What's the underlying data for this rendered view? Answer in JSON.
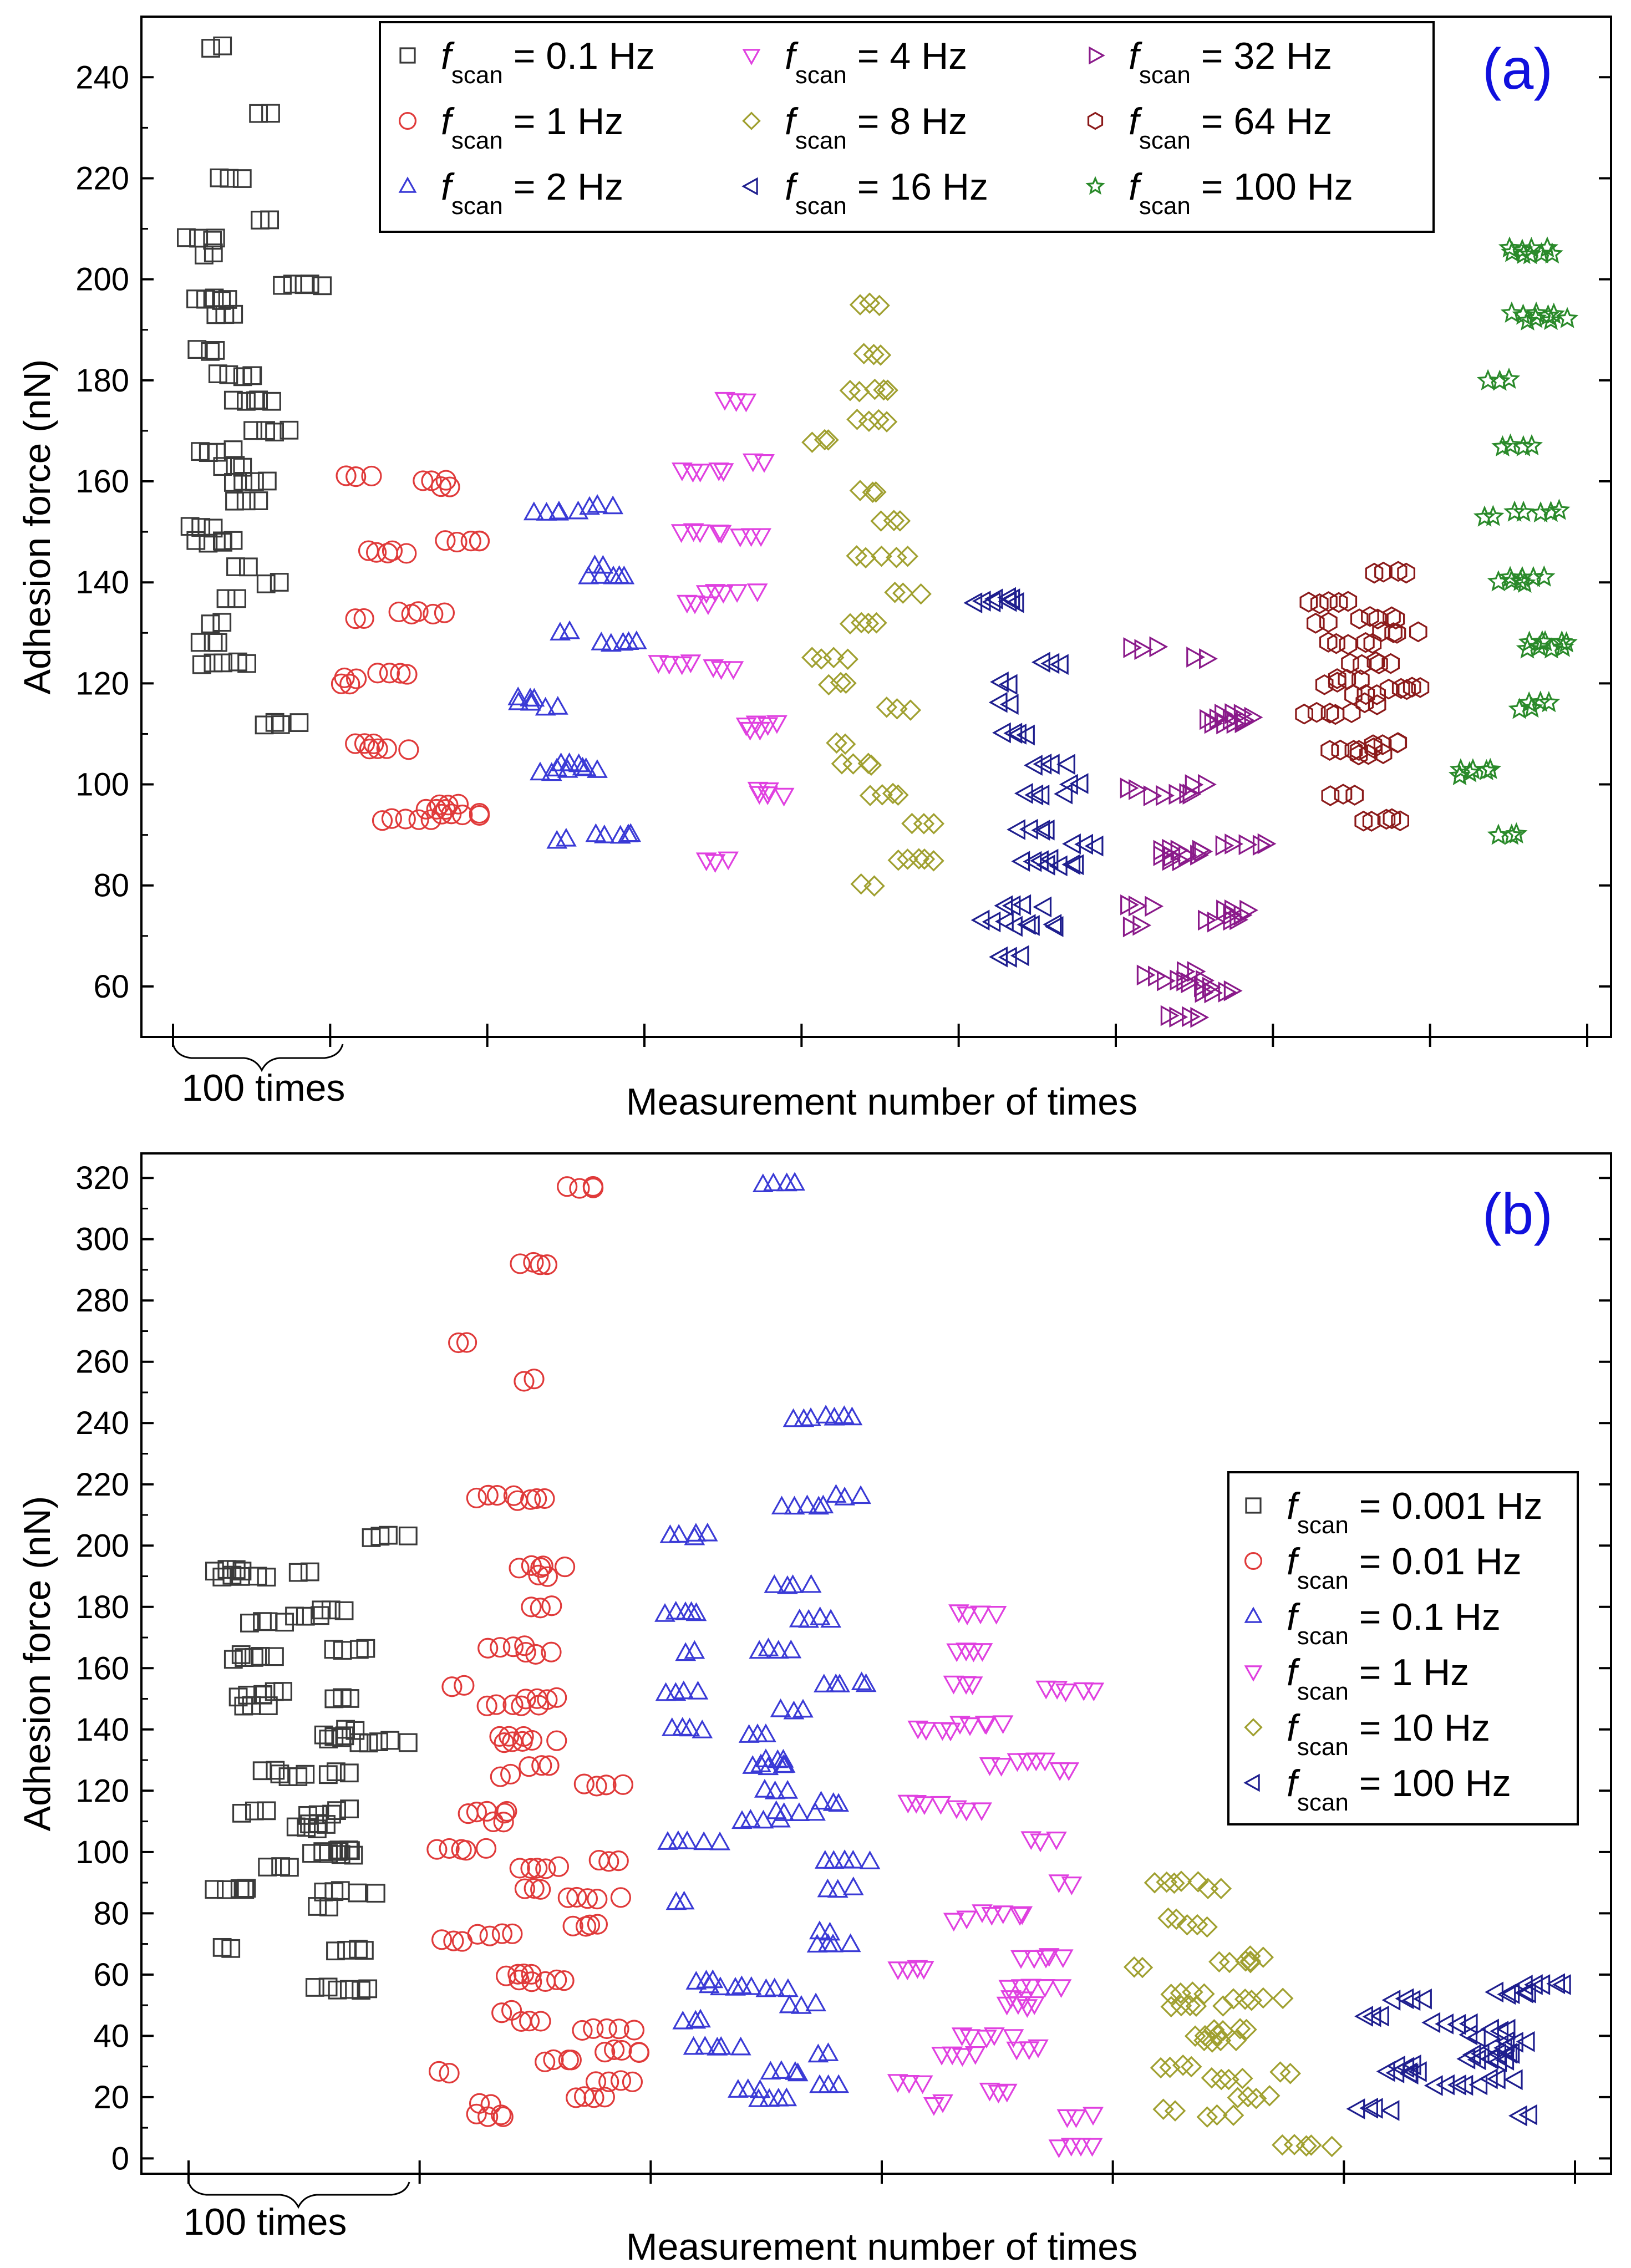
{
  "chart_data": [
    {
      "type": "scatter",
      "panel_label": "(a)",
      "title": "",
      "xlabel": "Measurement number of times",
      "ylabel": "Adhesion force (nN)",
      "ylim": [
        50,
        252
      ],
      "yticks": [
        60,
        80,
        100,
        120,
        140,
        160,
        180,
        200,
        220,
        240
      ],
      "ytick_labels": [
        "60",
        "80",
        "100",
        "120",
        "140",
        "160",
        "180",
        "200",
        "220",
        "240"
      ],
      "x_unit": 100,
      "x_unit_annotation": "100 times",
      "legend_position": "top",
      "legend_param": "f",
      "legend_param_sub": "scan",
      "series": [
        {
          "name": "0.1 Hz",
          "label_suffix": " = 0.1 Hz",
          "marker": "square",
          "color": "#3a3a3a",
          "levels": [
            246,
            233,
            220,
            212,
            208,
            205,
            199,
            196,
            193,
            186,
            181,
            176,
            170,
            166,
            163,
            160,
            156,
            151,
            148,
            143,
            140,
            137,
            132,
            128,
            124,
            112
          ]
        },
        {
          "name": "1 Hz",
          "label_suffix": " = 1 Hz",
          "marker": "circle",
          "color": "#e03a3a",
          "levels": [
            161,
            160,
            159,
            148,
            146,
            134,
            133,
            122,
            121,
            120,
            108,
            107,
            96,
            95,
            94,
            93
          ]
        },
        {
          "name": "2 Hz",
          "label_suffix": " = 2 Hz",
          "marker": "triangle-up",
          "color": "#3a3ad6",
          "levels": [
            155,
            154,
            143,
            141,
            130,
            128,
            117,
            116,
            115,
            104,
            103,
            102,
            90,
            89
          ]
        },
        {
          "name": "4 Hz",
          "label_suffix": " = 4 Hz",
          "marker": "triangle-down",
          "color": "#e040e0",
          "levels": [
            176,
            164,
            162,
            150,
            149,
            138,
            136,
            124,
            123,
            112,
            111,
            99,
            98,
            85
          ]
        },
        {
          "name": "8 Hz",
          "label_suffix": " = 8 Hz",
          "marker": "diamond",
          "color": "#a0a030",
          "levels": [
            195,
            185,
            178,
            172,
            168,
            158,
            152,
            145,
            138,
            132,
            125,
            120,
            115,
            108,
            104,
            98,
            92,
            85,
            80
          ]
        },
        {
          "name": "16 Hz",
          "label_suffix": " = 16 Hz",
          "marker": "triangle-left",
          "color": "#1e1e8e",
          "levels": [
            137,
            136,
            124,
            120,
            116,
            110,
            104,
            100,
            98,
            91,
            88,
            85,
            84,
            76,
            73,
            72,
            66
          ]
        },
        {
          "name": "32 Hz",
          "label_suffix": " = 32 Hz",
          "marker": "triangle-right",
          "color": "#8a1a8a",
          "levels": [
            127,
            125,
            114,
            113,
            112,
            100,
            99,
            98,
            88,
            87,
            86,
            85,
            76,
            75,
            74,
            73,
            72,
            63,
            62,
            61,
            60,
            59,
            54
          ]
        },
        {
          "name": "64 Hz",
          "label_suffix": " = 64 Hz",
          "marker": "hexagon",
          "color": "#8b1a1a",
          "levels": [
            142,
            136,
            133,
            132,
            130,
            128,
            124,
            121,
            120,
            119,
            118,
            116,
            114,
            108,
            107,
            106,
            98,
            93
          ]
        },
        {
          "name": "100 Hz",
          "label_suffix": " = 100 Hz",
          "marker": "star",
          "color": "#2a8a2a",
          "levels": [
            206,
            205,
            193,
            192,
            180,
            167,
            154,
            153,
            141,
            140,
            128,
            127,
            116,
            115,
            103,
            102,
            90
          ]
        }
      ]
    },
    {
      "type": "scatter",
      "panel_label": "(b)",
      "title": "",
      "xlabel": "Measurement number of times",
      "ylabel": "Adhesion force (nN)",
      "ylim": [
        -5,
        328
      ],
      "yticks": [
        0,
        20,
        40,
        60,
        80,
        100,
        120,
        140,
        160,
        180,
        200,
        220,
        240,
        260,
        280,
        300,
        320
      ],
      "ytick_labels": [
        "0",
        "20",
        "40",
        "60",
        "80",
        "100",
        "120",
        "140",
        "160",
        "180",
        "200",
        "220",
        "240",
        "260",
        "280",
        "300",
        "320"
      ],
      "x_unit": 100,
      "x_unit_annotation": "100 times",
      "legend_position": "right",
      "legend_param": "f",
      "legend_param_sub": "scan",
      "series": [
        {
          "name": "0.001 Hz",
          "label_suffix": " = 0.001 Hz",
          "marker": "square",
          "color": "#3a3a3a",
          "levels": [
            203,
            192,
            191,
            190,
            179,
            177,
            175,
            166,
            164,
            163,
            152,
            151,
            150,
            148,
            140,
            138,
            137,
            136,
            127,
            126,
            125,
            114,
            113,
            112,
            109,
            108,
            101,
            100,
            99,
            95,
            88,
            87,
            82,
            69,
            68,
            56,
            55
          ]
        },
        {
          "name": "0.01 Hz",
          "label_suffix": " = 0.01 Hz",
          "marker": "circle",
          "color": "#e03a3a",
          "levels": [
            317,
            292,
            266,
            254,
            216,
            215,
            193,
            190,
            180,
            167,
            165,
            154,
            150,
            148,
            138,
            136,
            128,
            125,
            122,
            113,
            110,
            101,
            97,
            95,
            88,
            85,
            76,
            73,
            71,
            60,
            58,
            48,
            45,
            42,
            35,
            32,
            28,
            25,
            20,
            18,
            14
          ]
        },
        {
          "name": "0.1 Hz",
          "label_suffix": " = 0.1 Hz",
          "marker": "triangle-up",
          "color": "#3a3ad6",
          "levels": [
            318,
            242,
            241,
            216,
            213,
            204,
            203,
            187,
            178,
            176,
            166,
            165,
            155,
            152,
            146,
            140,
            138,
            130,
            128,
            120,
            116,
            113,
            110,
            103,
            97,
            88,
            84,
            74,
            70,
            58,
            56,
            55,
            50,
            45,
            36,
            34,
            28,
            24,
            22,
            19
          ]
        },
        {
          "name": "1 Hz",
          "label_suffix": " = 1 Hz",
          "marker": "triangle-down",
          "color": "#e040e0",
          "levels": [
            178,
            166,
            155,
            153,
            142,
            140,
            130,
            128,
            127,
            116,
            114,
            104,
            90,
            80,
            78,
            66,
            62,
            56,
            52,
            50,
            40,
            36,
            34,
            25,
            22,
            18,
            14,
            4
          ]
        },
        {
          "name": "10 Hz",
          "label_suffix": " = 10 Hz",
          "marker": "diamond",
          "color": "#a0a030",
          "levels": [
            90,
            88,
            78,
            76,
            66,
            64,
            62,
            54,
            52,
            50,
            42,
            40,
            38,
            30,
            28,
            26,
            20,
            16,
            14,
            4
          ]
        },
        {
          "name": "100 Hz",
          "label_suffix": " = 100 Hz",
          "marker": "triangle-left",
          "color": "#1e1e8e",
          "levels": [
            57,
            54,
            52,
            46,
            44,
            42,
            40,
            38,
            36,
            34,
            32,
            30,
            28,
            26,
            24,
            16,
            14
          ]
        }
      ]
    }
  ]
}
